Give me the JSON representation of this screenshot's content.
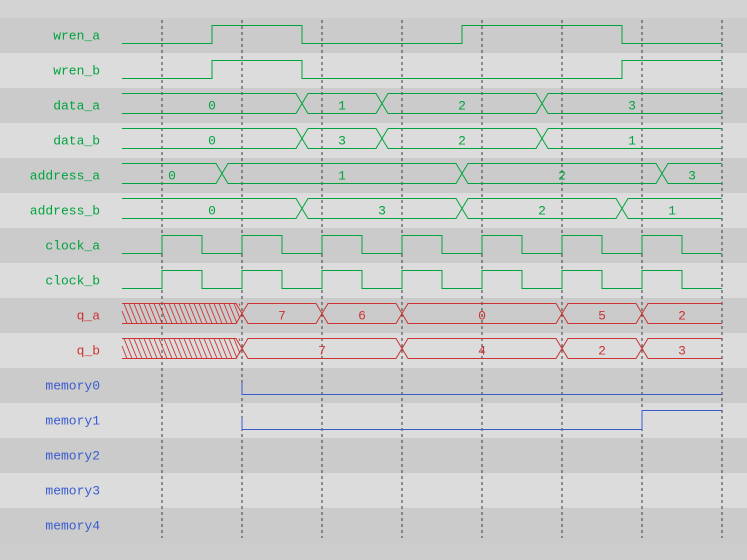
{
  "palette": {
    "green": "#00a33e",
    "red": "#cc3333",
    "blue": "#3a5bd0",
    "grid": "#3c3c3c",
    "row_dark": "#cbcbcb",
    "row_light": "#dcdcdc",
    "strip_top": "#d3d3d3",
    "strip_bottom": "#cccccc"
  },
  "waveform": {
    "time_span": 600,
    "grid_ticks": [
      40,
      120,
      200,
      280,
      360,
      440,
      520,
      600
    ],
    "signals": [
      {
        "label": "wren_a",
        "type": "binary",
        "color": "green",
        "initial": 0,
        "toggles": [
          90,
          180,
          340,
          500
        ]
      },
      {
        "label": "wren_b",
        "type": "binary",
        "color": "green",
        "initial": 0,
        "toggles": [
          90,
          180,
          500
        ]
      },
      {
        "label": "data_a",
        "type": "bus",
        "color": "green",
        "edges": [
          0,
          180,
          260,
          420,
          600
        ],
        "values": [
          "0",
          "1",
          "2",
          "3"
        ]
      },
      {
        "label": "data_b",
        "type": "bus",
        "color": "green",
        "edges": [
          0,
          180,
          260,
          420,
          600
        ],
        "values": [
          "0",
          "3",
          "2",
          "1"
        ]
      },
      {
        "label": "address_a",
        "type": "bus",
        "color": "green",
        "edges": [
          0,
          100,
          340,
          540,
          600
        ],
        "values": [
          "0",
          "1",
          "2",
          "3"
        ]
      },
      {
        "label": "address_b",
        "type": "bus",
        "color": "green",
        "edges": [
          0,
          180,
          340,
          500,
          600
        ],
        "values": [
          "0",
          "3",
          "2",
          "1"
        ]
      },
      {
        "label": "clock_a",
        "type": "binary",
        "color": "green",
        "initial": 0,
        "toggles": [
          40,
          80,
          120,
          160,
          200,
          240,
          280,
          320,
          360,
          400,
          440,
          480,
          520,
          560
        ]
      },
      {
        "label": "clock_b",
        "type": "binary",
        "color": "green",
        "initial": 0,
        "toggles": [
          40,
          80,
          120,
          160,
          200,
          240,
          280,
          320,
          360,
          400,
          440,
          480,
          520,
          560
        ]
      },
      {
        "label": "q_a",
        "type": "bus",
        "color": "red",
        "edges": [
          0,
          120,
          200,
          280,
          440,
          520,
          600
        ],
        "values": [
          "X",
          "7",
          "6",
          "0",
          "5",
          "2"
        ]
      },
      {
        "label": "q_b",
        "type": "bus",
        "color": "red",
        "edges": [
          0,
          120,
          280,
          440,
          520,
          600
        ],
        "values": [
          "X",
          "7",
          "4",
          "2",
          "3"
        ]
      },
      {
        "label": "memory0",
        "type": "reg",
        "color": "blue",
        "edges": [
          120,
          600
        ],
        "values": [
          0
        ]
      },
      {
        "label": "memory1",
        "type": "reg",
        "color": "blue",
        "edges": [
          120,
          520,
          600
        ],
        "values": [
          0,
          1
        ]
      },
      {
        "label": "memory2",
        "type": "empty",
        "color": "blue"
      },
      {
        "label": "memory3",
        "type": "empty",
        "color": "blue"
      },
      {
        "label": "memory4",
        "type": "empty",
        "color": "blue"
      }
    ]
  }
}
